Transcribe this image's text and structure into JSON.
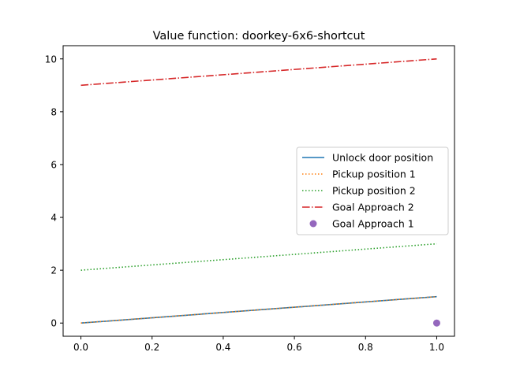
{
  "chart_data": {
    "type": "line",
    "title": "Value function: doorkey-6x6-shortcut",
    "xlabel": "",
    "ylabel": "",
    "xlim": [
      -0.05,
      1.05
    ],
    "ylim": [
      -0.5,
      10.5
    ],
    "xticks": [
      0.0,
      0.2,
      0.4,
      0.6,
      0.8,
      1.0
    ],
    "xtick_labels": [
      "0.0",
      "0.2",
      "0.4",
      "0.6",
      "0.8",
      "1.0"
    ],
    "yticks": [
      0,
      2,
      4,
      6,
      8,
      10
    ],
    "ytick_labels": [
      "0",
      "2",
      "4",
      "6",
      "8",
      "10"
    ],
    "grid": false,
    "legend_position": "center-right",
    "series": [
      {
        "name": "Unlock door position",
        "style": "solid",
        "marker": "none",
        "color": "#1f77b4",
        "x": [
          0,
          1
        ],
        "y": [
          0,
          1
        ]
      },
      {
        "name": "Pickup position 1",
        "style": "dotted",
        "marker": "none",
        "color": "#ff7f0e",
        "x": [
          0,
          1
        ],
        "y": [
          0,
          1
        ]
      },
      {
        "name": "Pickup position 2",
        "style": "dotted",
        "marker": "none",
        "color": "#2ca02c",
        "x": [
          0,
          1
        ],
        "y": [
          2,
          3
        ]
      },
      {
        "name": "Goal Approach 2",
        "style": "dashdot",
        "marker": "none",
        "color": "#d62728",
        "x": [
          0,
          1
        ],
        "y": [
          9,
          10
        ]
      },
      {
        "name": "Goal Approach 1",
        "style": "none",
        "marker": "circle",
        "color": "#9467bd",
        "x": [
          1
        ],
        "y": [
          0
        ]
      }
    ]
  }
}
